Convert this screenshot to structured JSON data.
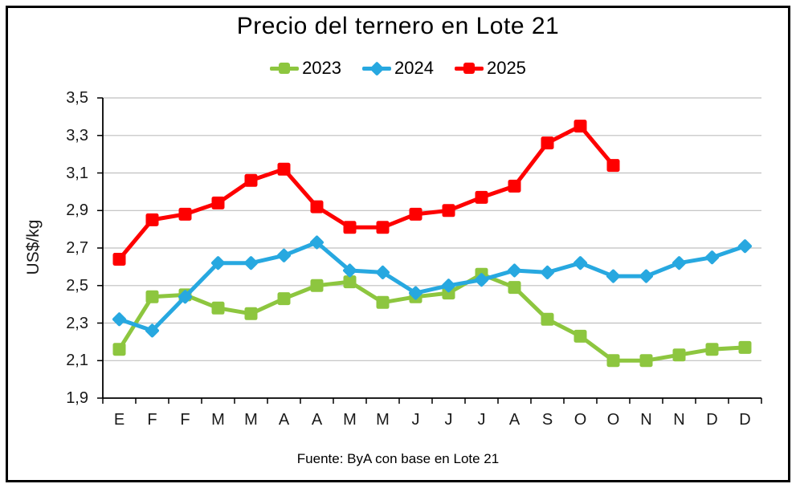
{
  "title": "Precio del ternero en Lote 21",
  "footer": "Fuente: ByA con base en Lote 21",
  "y_axis": {
    "label": "US$/kg",
    "ticks": [
      "3,5",
      "3,3",
      "3,1",
      "2,9",
      "2,7",
      "2,5",
      "2,3",
      "2,1",
      "1,9"
    ]
  },
  "x_axis": {
    "labels": [
      "E",
      "F",
      "F",
      "M",
      "M",
      "A",
      "A",
      "M",
      "M",
      "J",
      "J",
      "J",
      "A",
      "S",
      "O",
      "O",
      "N",
      "N",
      "D",
      "D"
    ]
  },
  "colors": {
    "grid": "#BFBFBF",
    "axis": "#000000",
    "green_2023": "#8DC63F",
    "blue_2024": "#27A8E0",
    "red_2025": "#FE0000"
  },
  "chart_data": {
    "type": "line",
    "title": "Precio del ternero en Lote 21",
    "xlabel": "",
    "ylabel": "US$/kg",
    "ylim": [
      1.9,
      3.5
    ],
    "ytick_step": 0.2,
    "grid": true,
    "legend_position": "top",
    "source_note": "Fuente: ByA con base en Lote 21",
    "categories": [
      "E",
      "F",
      "F",
      "M",
      "M",
      "A",
      "A",
      "M",
      "M",
      "J",
      "J",
      "J",
      "A",
      "S",
      "O",
      "O",
      "N",
      "N",
      "D",
      "D"
    ],
    "series": [
      {
        "name": "2023",
        "color": "#8DC63F",
        "marker": "square",
        "values": [
          2.16,
          2.44,
          2.45,
          2.38,
          2.35,
          2.43,
          2.5,
          2.52,
          2.41,
          2.44,
          2.46,
          2.56,
          2.49,
          2.32,
          2.23,
          2.1,
          2.1,
          2.13,
          2.16,
          2.17
        ]
      },
      {
        "name": "2024",
        "color": "#27A8E0",
        "marker": "diamond",
        "values": [
          2.32,
          2.26,
          2.44,
          2.62,
          2.62,
          2.66,
          2.73,
          2.58,
          2.57,
          2.46,
          2.5,
          2.53,
          2.58,
          2.57,
          2.62,
          2.55,
          2.55,
          2.62,
          2.65,
          2.71
        ]
      },
      {
        "name": "2025",
        "color": "#FE0000",
        "marker": "square",
        "values": [
          2.64,
          2.85,
          2.88,
          2.94,
          3.06,
          3.12,
          2.92,
          2.81,
          2.81,
          2.88,
          2.9,
          2.97,
          3.03,
          3.26,
          3.35,
          3.14,
          null,
          null,
          null,
          null
        ]
      }
    ]
  }
}
